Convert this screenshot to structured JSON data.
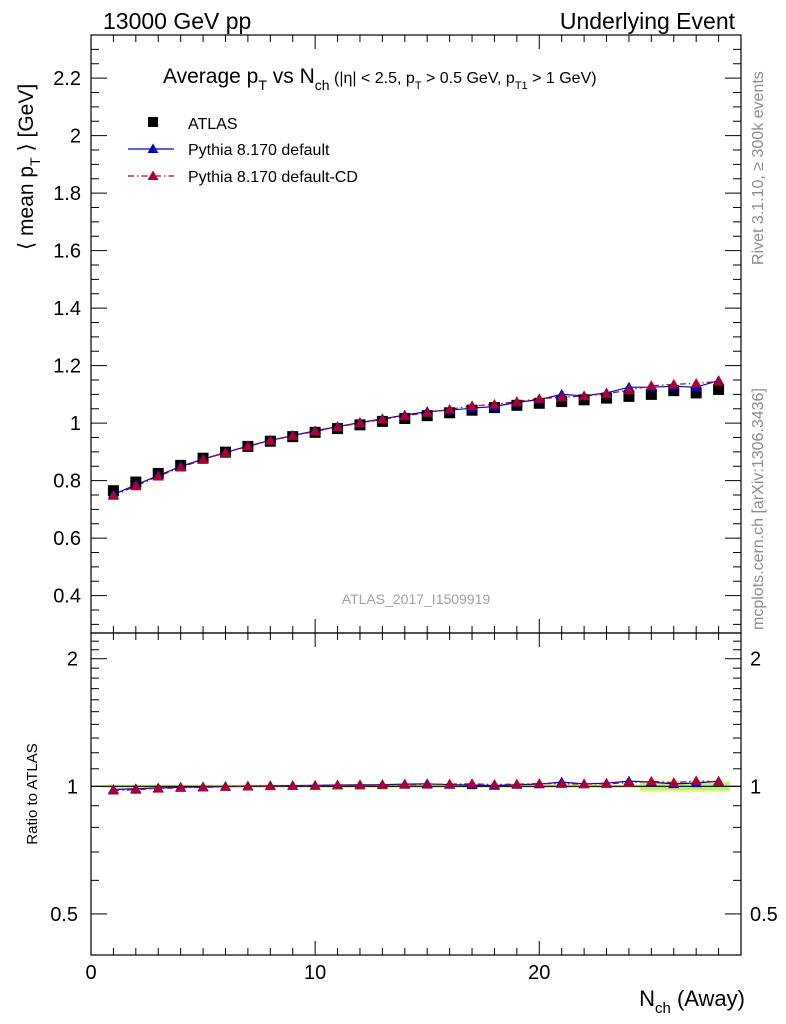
{
  "header": {
    "left": "13000 GeV pp",
    "right": "Underlying Event"
  },
  "side_labels": {
    "rivet": "Rivet 3.1.10, ≥ 300k events",
    "mcplots": "mcplots.cern.ch [arXiv:1306.3436]"
  },
  "colors": {
    "atlas": "#000000",
    "pythia_default": "#0000cc",
    "pythia_cd": "#aa0033",
    "band_yellow": "#f2f58a",
    "band_green": "#b5ef8c"
  },
  "chart_data": [
    {
      "type": "scatter",
      "panel": "main",
      "title_parts": {
        "prefix": "Average p",
        "sub1": "T",
        "mid": " vs N",
        "sub2": "ch",
        "cut_open": " (|η| < 2.5, p",
        "cut_sub1": "T",
        "cut_mid": " > 0.5 GeV, p",
        "cut_sub2": "T1",
        "cut_close": " > 1 GeV)"
      },
      "ylabel": "⟨ mean p_T ⟩ [GeV]",
      "ylabel_parts": {
        "main": "⟨ mean p",
        "sub": "T",
        "tail": " ⟩ [GeV]"
      },
      "xlabel": "N_ch (Away)",
      "xlabel_parts": {
        "main": "N",
        "sub": "ch",
        "tail": " (Away)"
      },
      "watermark": "ATLAS_2017_I1509919",
      "xlim": [
        0,
        29
      ],
      "ylim": [
        0.27,
        2.35
      ],
      "yticks": [
        0.4,
        0.6,
        0.8,
        1.0,
        1.2,
        1.4,
        1.6,
        1.8,
        2.0,
        2.2
      ],
      "ytick_labels": [
        "0.4",
        "0.6",
        "0.8",
        "1",
        "1.2",
        "1.4",
        "1.6",
        "1.8",
        "2",
        "2.2"
      ],
      "xticks": [
        0,
        10,
        20
      ],
      "xtick_labels": [
        "0",
        "10",
        "20"
      ],
      "legend_position": "top-left",
      "x": [
        1,
        2,
        3,
        4,
        5,
        6,
        7,
        8,
        9,
        10,
        11,
        12,
        13,
        14,
        15,
        16,
        17,
        18,
        19,
        20,
        21,
        22,
        23,
        24,
        25,
        26,
        27,
        28
      ],
      "series": [
        {
          "name": "ATLAS",
          "marker": "square",
          "values": [
            0.765,
            0.795,
            0.825,
            0.853,
            0.878,
            0.899,
            0.919,
            0.937,
            0.953,
            0.968,
            0.981,
            0.994,
            1.006,
            1.016,
            1.026,
            1.036,
            1.045,
            1.054,
            1.062,
            1.069,
            1.075,
            1.081,
            1.087,
            1.093,
            1.1,
            1.113,
            1.105,
            1.117
          ]
        },
        {
          "name": "Pythia 8.170 default",
          "marker": "triangle",
          "line": "solid",
          "values": [
            0.752,
            0.785,
            0.818,
            0.849,
            0.875,
            0.898,
            0.92,
            0.94,
            0.957,
            0.973,
            0.988,
            1.002,
            1.015,
            1.028,
            1.04,
            1.045,
            1.052,
            1.058,
            1.072,
            1.082,
            1.1,
            1.095,
            1.105,
            1.125,
            1.125,
            1.128,
            1.125,
            1.148
          ]
        },
        {
          "name": "Pythia 8.170 default-CD",
          "marker": "triangle",
          "line": "dashdot",
          "values": [
            0.748,
            0.781,
            0.815,
            0.846,
            0.873,
            0.897,
            0.919,
            0.939,
            0.956,
            0.971,
            0.987,
            1.0,
            1.013,
            1.025,
            1.036,
            1.048,
            1.06,
            1.065,
            1.075,
            1.085,
            1.09,
            1.094,
            1.102,
            1.115,
            1.13,
            1.135,
            1.138,
            1.145
          ]
        }
      ]
    },
    {
      "type": "scatter",
      "panel": "ratio",
      "ylabel": "Ratio to ATLAS",
      "xlim": [
        0,
        29
      ],
      "ylim": [
        0.4,
        2.3
      ],
      "log_y": true,
      "yticks": [
        0.5,
        1,
        2
      ],
      "ytick_labels": [
        "0.5",
        "1",
        "2"
      ],
      "x": [
        1,
        2,
        3,
        4,
        5,
        6,
        7,
        8,
        9,
        10,
        11,
        12,
        13,
        14,
        15,
        16,
        17,
        18,
        19,
        20,
        21,
        22,
        23,
        24,
        25,
        26,
        27,
        28
      ],
      "reference": 1.0,
      "series": [
        {
          "name": "Pythia 8.170 default",
          "values": [
            0.983,
            0.987,
            0.991,
            0.995,
            0.997,
            0.999,
            1.001,
            1.003,
            1.004,
            1.005,
            1.007,
            1.008,
            1.009,
            1.012,
            1.014,
            1.009,
            1.007,
            1.004,
            1.009,
            1.012,
            1.023,
            1.013,
            1.017,
            1.029,
            1.023,
            1.013,
            1.018,
            1.028
          ]
        },
        {
          "name": "Pythia 8.170 default-CD",
          "values": [
            0.978,
            0.982,
            0.988,
            0.992,
            0.994,
            0.998,
            1.0,
            1.002,
            1.003,
            1.003,
            1.006,
            1.006,
            1.007,
            1.009,
            1.01,
            1.012,
            1.014,
            1.01,
            1.012,
            1.015,
            1.014,
            1.012,
            1.014,
            1.02,
            1.027,
            1.02,
            1.03,
            1.025
          ]
        }
      ]
    }
  ]
}
